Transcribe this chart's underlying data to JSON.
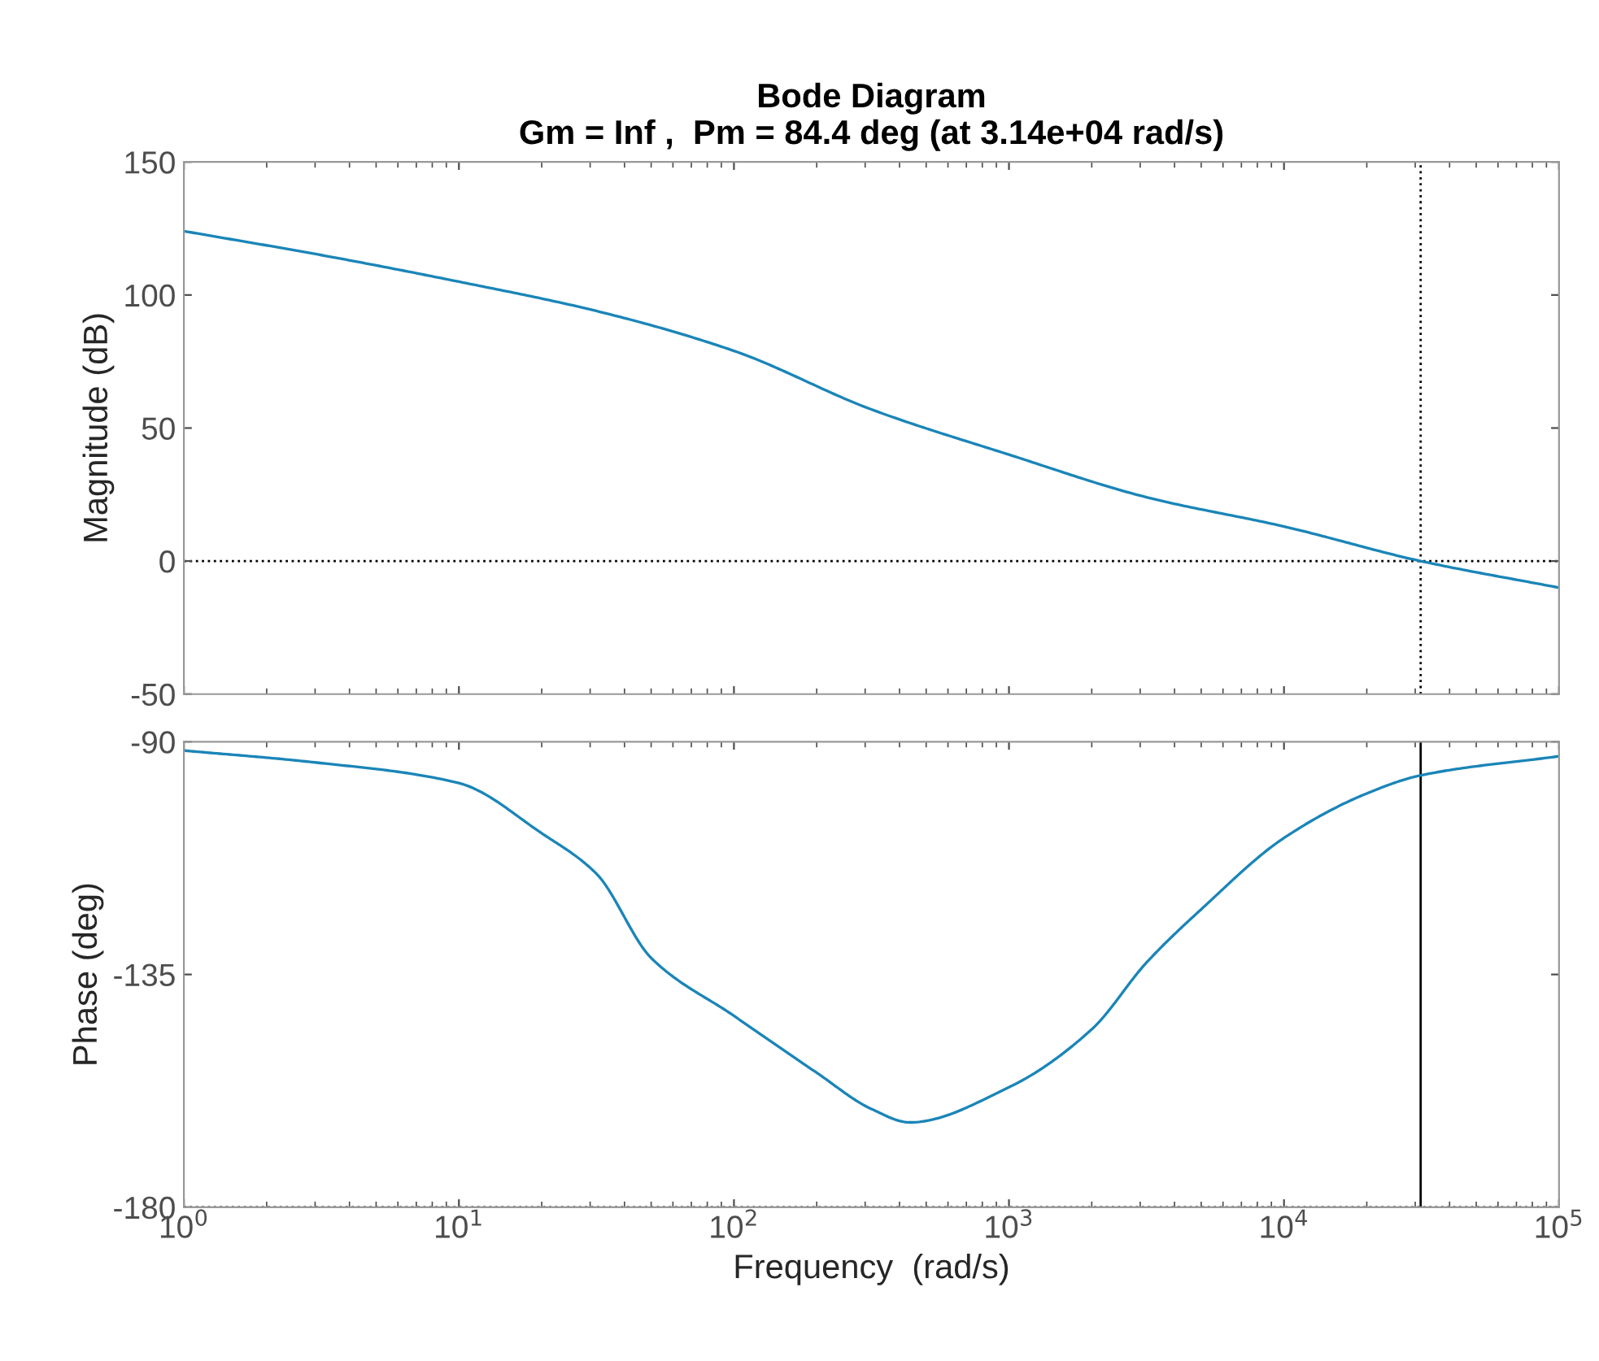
{
  "chart_data": [
    {
      "type": "line",
      "title": "Bode Diagram",
      "subtitle": "Gm = Inf ,  Pm = 84.4 deg (at 3.14e+04 rad/s)",
      "ylabel": "Magnitude (dB)",
      "log": "x",
      "xlim": [
        1,
        100000
      ],
      "xticks": [
        {
          "value": 1,
          "label": null
        },
        {
          "value": 10,
          "label": null
        },
        {
          "value": 100,
          "label": null
        },
        {
          "value": 1000,
          "label": null
        },
        {
          "value": 10000,
          "label": null
        },
        {
          "value": 100000,
          "label": null
        }
      ],
      "ylim": [
        -50,
        150
      ],
      "yticks": [
        -50,
        0,
        50,
        100,
        150
      ],
      "tick_labels": "y",
      "grid": false,
      "legend": false,
      "x": [
        1,
        3.16,
        10,
        31.6,
        100,
        316,
        1000,
        3162,
        10000,
        31400,
        100000
      ],
      "series": [
        {
          "color": "#1a85b8",
          "values": [
            124,
            115,
            105,
            94,
            79,
            57,
            40,
            24,
            13,
            0,
            -10
          ]
        }
      ],
      "ref_lines": [
        {
          "axis": "y",
          "value": 0,
          "line_style": "dotted",
          "color": "#000000"
        },
        {
          "axis": "x",
          "value": 31400,
          "line_style": "dotted",
          "color": "#000000"
        }
      ]
    },
    {
      "type": "line",
      "xlabel": "Frequency  (rad/s)",
      "ylabel": "Phase (deg)",
      "log": "x",
      "xlim": [
        1,
        100000
      ],
      "xticks": [
        {
          "value": 1,
          "label": "10$^{0}$"
        },
        {
          "value": 10,
          "label": "10$^{1}$"
        },
        {
          "value": 100,
          "label": "10$^{2}$"
        },
        {
          "value": 1000,
          "label": "10$^{3}$"
        },
        {
          "value": 10000,
          "label": "10$^{4}$"
        },
        {
          "value": 100000,
          "label": "10$^{5}$"
        }
      ],
      "ylim": [
        -180,
        -90
      ],
      "yticks": [
        -180,
        -135,
        -90
      ],
      "grid": false,
      "legend": false,
      "x": [
        1,
        3,
        10,
        20,
        31.6,
        50,
        100,
        200,
        316,
        436,
        1000,
        2000,
        3162,
        5000,
        10000,
        20000,
        31400,
        100000
      ],
      "series": [
        {
          "color": "#1a85b8",
          "values": [
            -91.7,
            -94,
            -98,
            -107.7,
            -115.5,
            -131.8,
            -143,
            -154,
            -161,
            -163.6,
            -156.8,
            -145.6,
            -132.7,
            -122.4,
            -108.6,
            -100,
            -96.5,
            -92.8
          ]
        }
      ],
      "ref_lines": [
        {
          "axis": "y",
          "value": -180,
          "line_style": "dotted",
          "color": "#000000"
        },
        {
          "axis": "x",
          "value": 31400,
          "line_style": "solid",
          "color": "#000000"
        }
      ]
    }
  ]
}
